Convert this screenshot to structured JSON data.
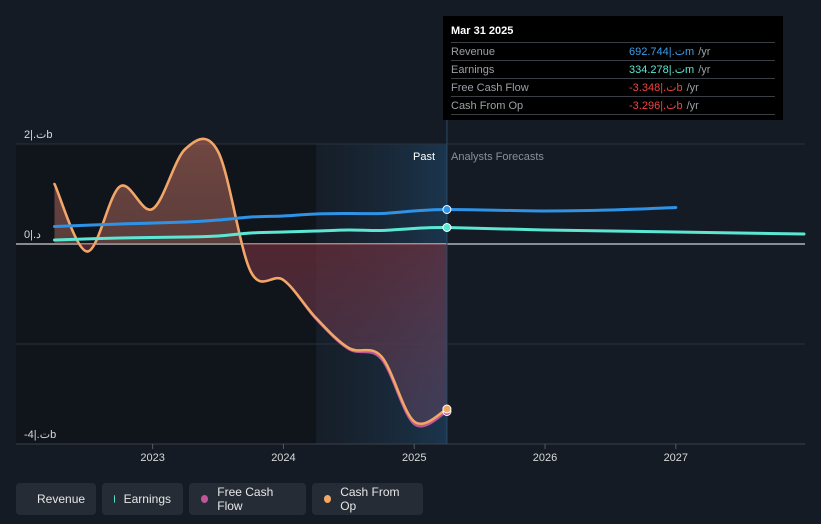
{
  "tooltip": {
    "date": "Mar 31 2025",
    "rows": [
      {
        "label": "Revenue",
        "value": "692.744|.تm",
        "unit": "/yr",
        "color": "#3b9de8"
      },
      {
        "label": "Earnings",
        "value": "334.278|.تm",
        "unit": "/yr",
        "color": "#5ce6d4"
      },
      {
        "label": "Free Cash Flow",
        "value": "-3.348|.تb",
        "unit": "/yr",
        "color": "#ee4444"
      },
      {
        "label": "Cash From Op",
        "value": "-3.296|.تb",
        "unit": "/yr",
        "color": "#ee4444"
      }
    ]
  },
  "legend": [
    {
      "label": "Revenue",
      "color": "#2e93e6"
    },
    {
      "label": "Earnings",
      "color": "#5ce6d4"
    },
    {
      "label": "Free Cash Flow",
      "color": "#c0569a"
    },
    {
      "label": "Cash From Op",
      "color": "#f0a864"
    }
  ],
  "chart_data": {
    "type": "line",
    "y_tick_labels": [
      {
        "value": 2,
        "label": "2|.تb"
      },
      {
        "value": 0,
        "label": "0|.د"
      },
      {
        "value": -4,
        "label": "-4|.تb"
      }
    ],
    "ylim": [
      -4,
      2
    ],
    "xlim": [
      2022.2,
      2027.98
    ],
    "x_tick_labels": [
      "2023",
      "2024",
      "2025",
      "2026",
      "2027"
    ],
    "x_ticks": [
      2023,
      2024,
      2025,
      2026,
      2027
    ],
    "past_label": "Past",
    "forecast_label": "Analysts Forecasts",
    "divider_x": 2025.25,
    "shade_start_x": 2024.25,
    "series": [
      {
        "name": "Revenue",
        "color": "#2e93e6",
        "points": [
          [
            2022.25,
            0.35
          ],
          [
            2022.75,
            0.4
          ],
          [
            2023.25,
            0.44
          ],
          [
            2023.5,
            0.48
          ],
          [
            2023.75,
            0.54
          ],
          [
            2024.0,
            0.56
          ],
          [
            2024.25,
            0.6
          ],
          [
            2024.5,
            0.61
          ],
          [
            2024.75,
            0.61
          ],
          [
            2025.0,
            0.66
          ],
          [
            2025.25,
            0.69
          ],
          [
            2025.75,
            0.67
          ],
          [
            2026.0,
            0.66
          ],
          [
            2026.5,
            0.68
          ],
          [
            2027.0,
            0.73
          ]
        ]
      },
      {
        "name": "Earnings",
        "color": "#5ce6d4",
        "points": [
          [
            2022.25,
            0.08
          ],
          [
            2022.75,
            0.12
          ],
          [
            2023.25,
            0.14
          ],
          [
            2023.5,
            0.16
          ],
          [
            2023.75,
            0.22
          ],
          [
            2024.0,
            0.24
          ],
          [
            2024.25,
            0.26
          ],
          [
            2024.5,
            0.28
          ],
          [
            2024.75,
            0.27
          ],
          [
            2025.0,
            0.31
          ],
          [
            2025.25,
            0.33
          ],
          [
            2026.0,
            0.28
          ],
          [
            2027.0,
            0.24
          ],
          [
            2027.98,
            0.2
          ]
        ]
      },
      {
        "name": "Free Cash Flow",
        "color": "#c0569a",
        "points": [
          [
            2022.25,
            1.2
          ],
          [
            2022.5,
            -0.15
          ],
          [
            2022.75,
            1.15
          ],
          [
            2023.0,
            0.7
          ],
          [
            2023.25,
            1.9
          ],
          [
            2023.5,
            1.85
          ],
          [
            2023.75,
            -0.55
          ],
          [
            2024.0,
            -0.72
          ],
          [
            2024.25,
            -1.5
          ],
          [
            2024.5,
            -2.1
          ],
          [
            2024.75,
            -2.3
          ],
          [
            2025.0,
            -3.6
          ],
          [
            2025.25,
            -3.35
          ]
        ]
      },
      {
        "name": "Cash From Op",
        "color": "#f0a864",
        "points": [
          [
            2022.25,
            1.2
          ],
          [
            2022.5,
            -0.15
          ],
          [
            2022.75,
            1.15
          ],
          [
            2023.0,
            0.7
          ],
          [
            2023.25,
            1.9
          ],
          [
            2023.5,
            1.85
          ],
          [
            2023.75,
            -0.55
          ],
          [
            2024.0,
            -0.72
          ],
          [
            2024.25,
            -1.48
          ],
          [
            2024.5,
            -2.08
          ],
          [
            2024.75,
            -2.25
          ],
          [
            2025.0,
            -3.55
          ],
          [
            2025.25,
            -3.3
          ]
        ]
      }
    ]
  }
}
